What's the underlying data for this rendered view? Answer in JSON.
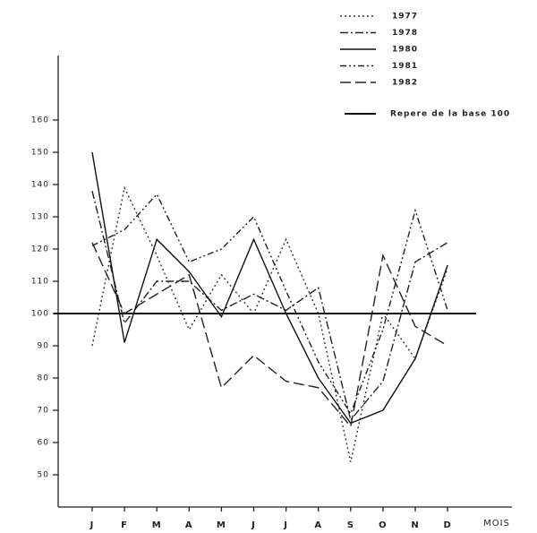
{
  "chart_data": {
    "type": "line",
    "categories": [
      "J",
      "F",
      "M",
      "A",
      "M",
      "J",
      "J",
      "A",
      "S",
      "O",
      "N",
      "D"
    ],
    "x_label": "MOIS",
    "ylim": [
      40,
      180
    ],
    "yticks": [
      50,
      60,
      70,
      80,
      90,
      100,
      110,
      120,
      130,
      140,
      150,
      160
    ],
    "reference": {
      "label": "Repere de la base 100",
      "value": 100
    },
    "series": [
      {
        "name": "1977",
        "color": "#333333",
        "dash": "2,3",
        "values": [
          90,
          139,
          118,
          95,
          112,
          100,
          123,
          100,
          54,
          100,
          86,
          114
        ]
      },
      {
        "name": "1978",
        "color": "#222222",
        "dash": "9,3,2,3",
        "values": [
          138,
          97,
          110,
          110,
          101,
          106,
          101,
          108,
          67,
          79,
          116,
          122
        ]
      },
      {
        "name": "1980",
        "color": "#111111",
        "dash": "",
        "values": [
          150,
          91,
          123,
          113,
          99,
          123,
          100,
          80,
          66,
          70,
          86,
          115
        ]
      },
      {
        "name": "1981",
        "color": "#222222",
        "dash": "7,3,2,3,2,3",
        "values": [
          121,
          126,
          137,
          116,
          120,
          130,
          107,
          85,
          69,
          95,
          132,
          101
        ]
      },
      {
        "name": "1982",
        "color": "#222222",
        "dash": "12,5",
        "values": [
          122,
          100,
          106,
          112,
          77,
          87,
          79,
          77,
          65,
          118,
          96,
          90
        ]
      }
    ]
  }
}
